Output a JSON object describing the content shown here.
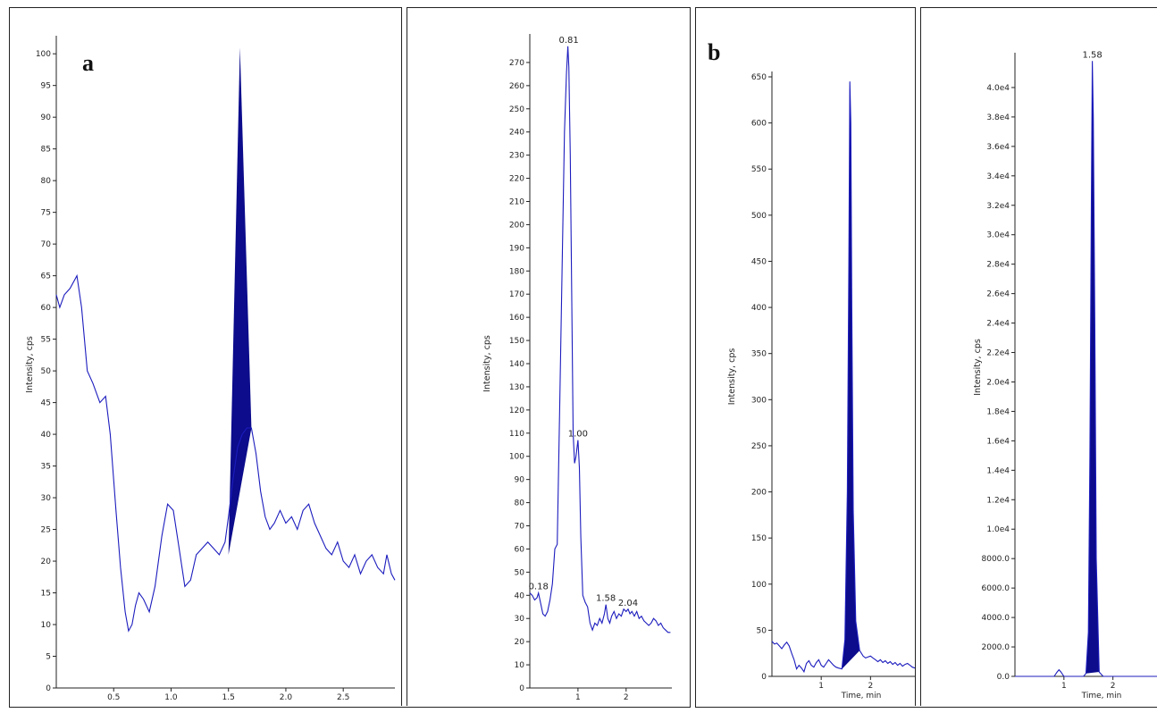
{
  "panels": {
    "a": "a",
    "b": "b"
  },
  "chart_data": [
    {
      "type": "line",
      "panel": "a",
      "ylabel": "Intensity, cps",
      "xlim": [
        0,
        2.95
      ],
      "ylim": [
        0,
        102
      ],
      "xticks": [
        "0.5",
        "1.0",
        "1.5",
        "2.0",
        "2.5"
      ],
      "xtick_values": [
        0.5,
        1.0,
        1.5,
        2.0,
        2.5
      ],
      "yticks": [
        0,
        5,
        10,
        15,
        20,
        25,
        30,
        35,
        40,
        45,
        50,
        55,
        60,
        65,
        70,
        75,
        80,
        85,
        90,
        95,
        100
      ],
      "color": "#1c1cbe",
      "fill_color": "#0c0c8c",
      "peak_area": [
        [
          1.5,
          21
        ],
        [
          1.6,
          101
        ],
        [
          1.7,
          41
        ],
        [
          1.5,
          21
        ]
      ],
      "x": [
        0,
        0.03,
        0.07,
        0.12,
        0.18,
        0.22,
        0.27,
        0.32,
        0.38,
        0.43,
        0.47,
        0.52,
        0.56,
        0.6,
        0.63,
        0.66,
        0.69,
        0.72,
        0.76,
        0.81,
        0.86,
        0.92,
        0.97,
        1.02,
        1.07,
        1.12,
        1.17,
        1.22,
        1.27,
        1.32,
        1.37,
        1.42,
        1.47,
        1.5,
        1.54,
        1.58,
        1.62,
        1.66,
        1.7,
        1.74,
        1.78,
        1.82,
        1.86,
        1.9,
        1.95,
        2.0,
        2.05,
        2.1,
        2.15,
        2.2,
        2.25,
        2.3,
        2.35,
        2.4,
        2.45,
        2.5,
        2.55,
        2.6,
        2.65,
        2.7,
        2.75,
        2.8,
        2.85,
        2.88,
        2.92,
        2.95
      ],
      "y": [
        62,
        60,
        62,
        63,
        65,
        60,
        50,
        48,
        45,
        46,
        40,
        28,
        19,
        12,
        9,
        10,
        13,
        15,
        14,
        12,
        16,
        24,
        29,
        28,
        22,
        16,
        17,
        21,
        22,
        23,
        22,
        21,
        23,
        27,
        33,
        38,
        40,
        41,
        41,
        37,
        31,
        27,
        25,
        26,
        28,
        26,
        27,
        25,
        28,
        29,
        26,
        24,
        22,
        21,
        23,
        20,
        19,
        21,
        18,
        20,
        21,
        19,
        18,
        21,
        18,
        17
      ]
    },
    {
      "type": "line",
      "panel": "a2",
      "ylabel": "Intensity, cps",
      "xlim": [
        0,
        2.95
      ],
      "ylim": [
        0,
        280
      ],
      "xticks": [
        "1",
        "2"
      ],
      "xtick_values": [
        1,
        2
      ],
      "yticks": [
        0,
        10,
        20,
        30,
        40,
        50,
        60,
        70,
        80,
        90,
        100,
        110,
        120,
        130,
        140,
        150,
        160,
        170,
        180,
        190,
        200,
        210,
        220,
        230,
        240,
        250,
        260,
        270
      ],
      "color": "#1c1cbe",
      "peak_labels": [
        {
          "x": 0.18,
          "y": 41,
          "label": "0.18"
        },
        {
          "x": 0.81,
          "y": 277,
          "label": "0.81"
        },
        {
          "x": 1.0,
          "y": 107,
          "label": "1.00"
        },
        {
          "x": 1.58,
          "y": 36,
          "label": "1.58"
        },
        {
          "x": 2.04,
          "y": 34,
          "label": "2.04"
        }
      ],
      "x": [
        0,
        0.05,
        0.1,
        0.15,
        0.18,
        0.22,
        0.27,
        0.32,
        0.37,
        0.42,
        0.47,
        0.52,
        0.57,
        0.62,
        0.67,
        0.72,
        0.76,
        0.79,
        0.81,
        0.84,
        0.87,
        0.9,
        0.93,
        0.96,
        1.0,
        1.03,
        1.06,
        1.1,
        1.15,
        1.2,
        1.25,
        1.3,
        1.35,
        1.4,
        1.45,
        1.5,
        1.55,
        1.58,
        1.62,
        1.66,
        1.7,
        1.75,
        1.8,
        1.85,
        1.9,
        1.95,
        2.0,
        2.04,
        2.08,
        2.12,
        2.17,
        2.22,
        2.27,
        2.32,
        2.37,
        2.42,
        2.47,
        2.52,
        2.57,
        2.62,
        2.67,
        2.72,
        2.77,
        2.82,
        2.87,
        2.92
      ],
      "y": [
        41,
        40,
        38,
        39,
        41,
        37,
        32,
        31,
        33,
        38,
        45,
        60,
        62,
        120,
        180,
        240,
        265,
        277,
        268,
        230,
        170,
        110,
        97,
        100,
        107,
        95,
        65,
        40,
        37,
        35,
        28,
        25,
        28,
        27,
        30,
        28,
        32,
        36,
        30,
        28,
        31,
        33,
        30,
        32,
        31,
        34,
        33,
        34,
        32,
        33,
        31,
        33,
        30,
        31,
        29,
        28,
        27,
        28,
        30,
        29,
        27,
        28,
        26,
        25,
        24,
        24
      ]
    },
    {
      "type": "area",
      "panel": "b",
      "ylabel": "Intensity, cps",
      "xlabel": "Time, min",
      "xlim": [
        0,
        2.9
      ],
      "ylim": [
        0,
        650
      ],
      "xticks": [
        "1",
        "2"
      ],
      "xtick_values": [
        1,
        2
      ],
      "yticks": [
        "0",
        "50",
        "100",
        "150",
        "200",
        "250",
        "300",
        "350",
        "400",
        "450",
        "500",
        "550",
        "600",
        "650"
      ],
      "ytick_values": [
        0,
        50,
        100,
        150,
        200,
        250,
        300,
        350,
        400,
        450,
        500,
        550,
        600,
        650
      ],
      "color": "#1c1cbe",
      "fill_color": "#0c0c8c",
      "fill_range": [
        1.42,
        1.78
      ],
      "x": [
        0,
        0.05,
        0.1,
        0.15,
        0.2,
        0.25,
        0.3,
        0.35,
        0.4,
        0.45,
        0.5,
        0.55,
        0.6,
        0.65,
        0.7,
        0.75,
        0.8,
        0.85,
        0.9,
        0.95,
        1.0,
        1.05,
        1.1,
        1.15,
        1.2,
        1.25,
        1.3,
        1.35,
        1.42,
        1.48,
        1.53,
        1.56,
        1.58,
        1.6,
        1.62,
        1.65,
        1.7,
        1.78,
        1.85,
        1.9,
        1.95,
        2.0,
        2.05,
        2.1,
        2.15,
        2.2,
        2.25,
        2.3,
        2.35,
        2.4,
        2.45,
        2.5,
        2.55,
        2.6,
        2.65,
        2.7,
        2.75,
        2.8,
        2.85,
        2.9
      ],
      "y": [
        38,
        35,
        36,
        33,
        30,
        34,
        37,
        33,
        25,
        18,
        8,
        12,
        9,
        5,
        14,
        17,
        12,
        10,
        15,
        18,
        12,
        10,
        14,
        18,
        15,
        12,
        10,
        9,
        8,
        40,
        200,
        450,
        645,
        600,
        400,
        180,
        60,
        28,
        22,
        20,
        21,
        22,
        20,
        18,
        16,
        18,
        15,
        17,
        14,
        16,
        13,
        15,
        12,
        14,
        11,
        13,
        14,
        12,
        10,
        9
      ]
    },
    {
      "type": "area",
      "panel": "b2",
      "ylabel": "Intensity, cps",
      "xlabel": "Time, min",
      "xlim": [
        0,
        2.9
      ],
      "ylim": [
        0,
        42000
      ],
      "xticks": [
        "1",
        "2"
      ],
      "xtick_values": [
        1,
        2
      ],
      "yticks": [
        "0.0",
        "2000.0",
        "4000.0",
        "6000.0",
        "8000.0",
        "1.0e4",
        "1.2e4",
        "1.4e4",
        "1.6e4",
        "1.8e4",
        "2.0e4",
        "2.2e4",
        "2.4e4",
        "2.6e4",
        "2.8e4",
        "3.0e4",
        "3.2e4",
        "3.4e4",
        "3.6e4",
        "3.8e4",
        "4.0e4"
      ],
      "ytick_values": [
        0,
        2000,
        4000,
        6000,
        8000,
        10000,
        12000,
        14000,
        16000,
        18000,
        20000,
        22000,
        24000,
        26000,
        28000,
        30000,
        32000,
        34000,
        36000,
        38000,
        40000
      ],
      "color": "#1c1cbe",
      "fill_color": "#0c0c8c",
      "fill_range": [
        1.45,
        1.72
      ],
      "peak_labels": [
        {
          "x": 1.58,
          "y": 41800,
          "label": "1.58"
        }
      ],
      "x": [
        0,
        0.3,
        0.6,
        0.8,
        0.86,
        0.9,
        0.94,
        1.0,
        1.2,
        1.4,
        1.45,
        1.5,
        1.53,
        1.56,
        1.58,
        1.6,
        1.63,
        1.66,
        1.72,
        1.8,
        2.0,
        2.3,
        2.6,
        2.9
      ],
      "y": [
        0,
        0,
        0,
        0,
        300,
        450,
        300,
        0,
        0,
        0,
        200,
        3000,
        15000,
        32000,
        41800,
        38000,
        24000,
        8000,
        300,
        0,
        0,
        0,
        0,
        0
      ]
    }
  ]
}
